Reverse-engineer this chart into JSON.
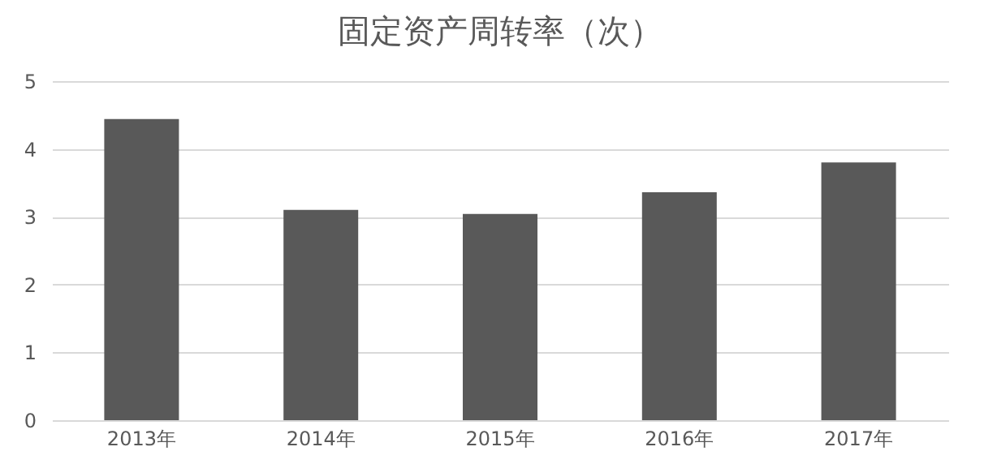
{
  "chart_data": {
    "type": "bar",
    "title": "固定资产周转率（次）",
    "categories": [
      "2013年",
      "2014年",
      "2015年",
      "2016年",
      "2017年"
    ],
    "values": [
      4.44,
      3.1,
      3.04,
      3.36,
      3.8
    ],
    "color": "#595959",
    "ylim": [
      0,
      5
    ],
    "yticks": [
      0,
      1,
      2,
      3,
      4,
      5
    ],
    "grid": "y"
  }
}
